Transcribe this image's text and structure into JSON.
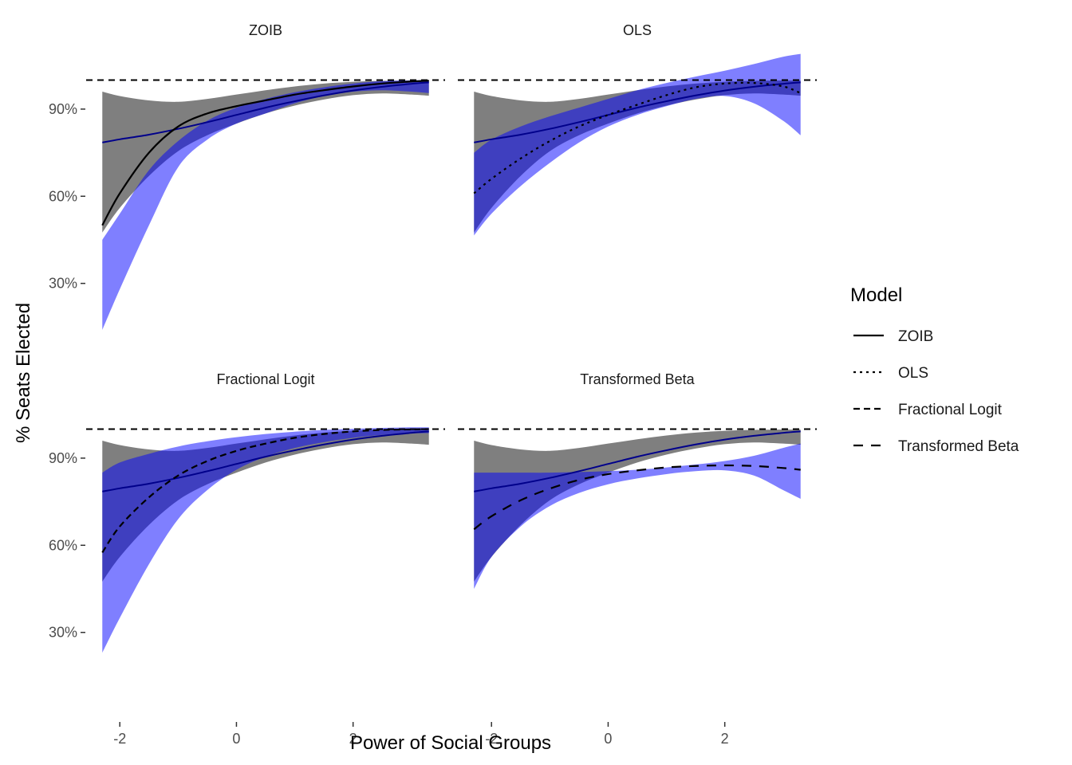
{
  "chart_data": {
    "type": "line",
    "xlabel": "Power of Social Groups",
    "ylabel": "% Seats Elected",
    "x_ticks": [
      {
        "value": -2,
        "label": "-2"
      },
      {
        "value": 0,
        "label": "0"
      },
      {
        "value": 2,
        "label": "2"
      }
    ],
    "y_ticks": [
      {
        "value": 30,
        "label": "30%"
      },
      {
        "value": 60,
        "label": "60%"
      },
      {
        "value": 90,
        "label": "90%"
      }
    ],
    "xlim": [
      -2.55,
      3.55
    ],
    "ylim": [
      0,
      110
    ],
    "reference_line": {
      "y": 100,
      "style": "dashed"
    },
    "colors": {
      "grey_band": "#7f7f7f",
      "blue_band": "rgba(0,0,255,0.5)",
      "blue_line": "#00008b",
      "model_line": "#000000"
    },
    "legend": {
      "title": "Model",
      "position": "right",
      "items": [
        {
          "label": "ZOIB",
          "dash": "solid"
        },
        {
          "label": "OLS",
          "dash": "dotted"
        },
        {
          "label": "Fractional Logit",
          "dash": "dashed"
        },
        {
          "label": "Transformed Beta",
          "dash": "longdash"
        }
      ]
    },
    "reference_model": {
      "x": [
        -2.3,
        -2.0,
        -1.5,
        -1.0,
        -0.5,
        0.0,
        0.5,
        1.0,
        1.5,
        2.0,
        2.5,
        3.0,
        3.3
      ],
      "center": [
        78.5,
        79.6,
        81.2,
        83.2,
        85.5,
        88.0,
        90.5,
        92.7,
        94.7,
        96.4,
        97.7,
        98.7,
        99.2
      ],
      "grey_lower": [
        47.5,
        56,
        67,
        75.5,
        81,
        85,
        88.5,
        91.2,
        93.3,
        94.8,
        95.4,
        95.0,
        94.6
      ],
      "grey_upper": [
        96,
        94.5,
        93,
        92.5,
        93.5,
        95,
        96.5,
        97.8,
        98.8,
        99.4,
        99.7,
        99.8,
        99.8
      ]
    },
    "panels": [
      {
        "title": "ZOIB",
        "line_dash": "solid",
        "line": [
          50,
          61,
          75,
          84,
          88.5,
          91,
          93,
          95,
          96.5,
          97.8,
          98.8,
          99.5,
          99.8
        ],
        "blue_lower": [
          14,
          28,
          50,
          70,
          79.5,
          85,
          88.5,
          92,
          94.5,
          96,
          96.5,
          96.0,
          95.5
        ],
        "blue_upper": [
          45,
          54,
          69,
          79,
          86,
          90.5,
          93.5,
          95.8,
          97.5,
          98.8,
          99.6,
          99.9,
          99.9
        ]
      },
      {
        "title": "OLS",
        "line_dash": "dotted",
        "line": [
          61,
          66,
          73,
          79,
          84,
          88,
          91.5,
          94.8,
          97.5,
          98.8,
          99,
          97.8,
          95.5
        ],
        "blue_lower": [
          46.5,
          54,
          63.5,
          71.5,
          78.5,
          84,
          88,
          91,
          93.5,
          94.5,
          92,
          86,
          81
        ],
        "blue_upper": [
          75,
          79.5,
          84,
          87.5,
          90.5,
          93.5,
          96.5,
          99,
          101.2,
          103.2,
          105.5,
          108,
          109
        ]
      },
      {
        "title": "Fractional Logit",
        "line_dash": "dashed",
        "line": [
          57.5,
          66.5,
          76.5,
          84,
          89,
          92.5,
          95,
          97,
          98.3,
          99.2,
          99.7,
          99.9,
          100
        ],
        "blue_lower": [
          23,
          35,
          53.5,
          69,
          79,
          86,
          90.5,
          93.5,
          95.5,
          97,
          98,
          98.5,
          98.6
        ],
        "blue_upper": [
          85,
          88.5,
          91.5,
          94,
          95.8,
          97.2,
          98.3,
          99.1,
          99.7,
          100.1,
          100.4,
          100.6,
          100.6
        ]
      },
      {
        "title": "Transformed Beta",
        "line_dash": "longdash",
        "line": [
          65.5,
          70,
          75.5,
          79.5,
          82.5,
          84.5,
          85.8,
          86.8,
          87.3,
          87.5,
          87.3,
          86.6,
          86.0
        ],
        "blue_lower": [
          45,
          56,
          66.5,
          73.5,
          78,
          81,
          83,
          84.5,
          85.5,
          85.8,
          84,
          79,
          76
        ],
        "blue_upper": [
          85,
          85,
          85,
          85,
          85.2,
          85.5,
          86,
          86.8,
          87.8,
          89,
          90.8,
          93.5,
          95
        ]
      }
    ]
  }
}
